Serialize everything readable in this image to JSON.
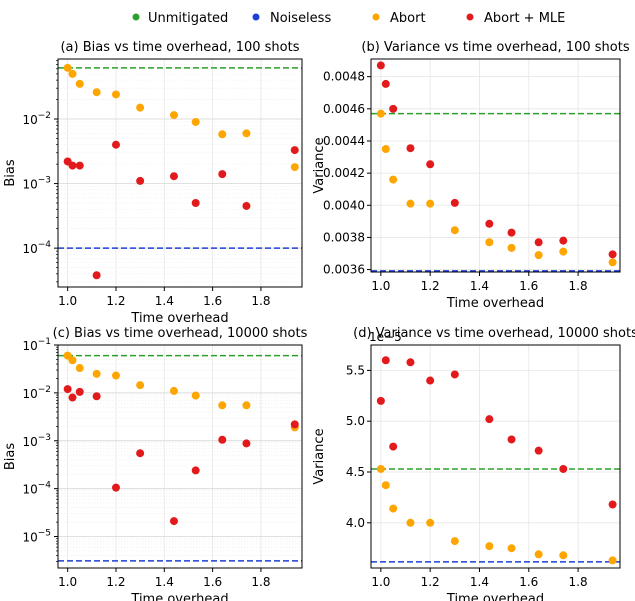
{
  "legend": {
    "placement": "top-center",
    "entries": [
      {
        "label": "Unmitigated",
        "color": "#2ca02c"
      },
      {
        "label": "Noiseless",
        "color": "#1f3fd6"
      },
      {
        "label": "Abort",
        "color": "#ffa500"
      },
      {
        "label": "Abort + MLE",
        "color": "#e31a1c"
      }
    ]
  },
  "chart_data": [
    {
      "type": "scatter",
      "title": "(a) Bias vs time overhead, 100 shots",
      "xlabel": "Time overhead",
      "ylabel": "Bias",
      "xscale": "linear",
      "yscale": "log",
      "xlim": [
        0.96,
        1.97
      ],
      "ylim": [
        2.5e-05,
        0.085
      ],
      "xticks": [
        {
          "v": 1.0,
          "label": "1.0"
        },
        {
          "v": 1.2,
          "label": "1.2"
        },
        {
          "v": 1.4,
          "label": "1.4"
        },
        {
          "v": 1.6,
          "label": "1.6"
        },
        {
          "v": 1.8,
          "label": "1.8"
        }
      ],
      "yticks": [
        {
          "v": 0.0001,
          "base": "10",
          "exp": "−4"
        },
        {
          "v": 0.001,
          "base": "10",
          "exp": "−3"
        },
        {
          "v": 0.01,
          "base": "10",
          "exp": "−2"
        }
      ],
      "offset_text": "",
      "grid": true,
      "hlines": [
        {
          "series": "Unmitigated",
          "y": 0.062,
          "color": "#2ca02c"
        },
        {
          "series": "Noiseless",
          "y": 0.0001,
          "color": "#1f3fd6"
        }
      ],
      "series": [
        {
          "name": "Abort",
          "color": "#ffa500",
          "x": [
            1.0,
            1.02,
            1.05,
            1.12,
            1.2,
            1.3,
            1.44,
            1.53,
            1.64,
            1.74,
            1.94
          ],
          "y": [
            0.062,
            0.05,
            0.035,
            0.026,
            0.024,
            0.015,
            0.0115,
            0.009,
            0.0058,
            0.006,
            0.0018
          ]
        },
        {
          "name": "Abort + MLE",
          "color": "#e31a1c",
          "x": [
            1.0,
            1.02,
            1.05,
            1.12,
            1.2,
            1.3,
            1.44,
            1.53,
            1.64,
            1.74,
            1.94
          ],
          "y": [
            0.0022,
            0.0019,
            0.0019,
            3.8e-05,
            0.004,
            0.0011,
            0.0013,
            0.0005,
            0.0014,
            0.00045,
            0.0033
          ]
        }
      ]
    },
    {
      "type": "scatter",
      "title": "(b) Variance vs time overhead, 100 shots",
      "xlabel": "Time overhead",
      "ylabel": "Variance",
      "xscale": "linear",
      "yscale": "linear",
      "xlim": [
        0.96,
        1.97
      ],
      "ylim": [
        0.003585,
        0.00491
      ],
      "xticks": [
        {
          "v": 1.0,
          "label": "1.0"
        },
        {
          "v": 1.2,
          "label": "1.2"
        },
        {
          "v": 1.4,
          "label": "1.4"
        },
        {
          "v": 1.6,
          "label": "1.6"
        },
        {
          "v": 1.8,
          "label": "1.8"
        }
      ],
      "yticks": [
        {
          "v": 0.0036,
          "label": "0.0036"
        },
        {
          "v": 0.0038,
          "label": "0.0038"
        },
        {
          "v": 0.004,
          "label": "0.0040"
        },
        {
          "v": 0.0042,
          "label": "0.0042"
        },
        {
          "v": 0.0044,
          "label": "0.0044"
        },
        {
          "v": 0.0046,
          "label": "0.0046"
        },
        {
          "v": 0.0048,
          "label": "0.0048"
        }
      ],
      "offset_text": "",
      "grid": true,
      "hlines": [
        {
          "series": "Unmitigated",
          "y": 0.00457,
          "color": "#2ca02c"
        },
        {
          "series": "Noiseless",
          "y": 0.003592,
          "color": "#1f3fd6"
        }
      ],
      "series": [
        {
          "name": "Abort",
          "color": "#ffa500",
          "x": [
            1.0,
            1.02,
            1.05,
            1.12,
            1.2,
            1.3,
            1.44,
            1.53,
            1.64,
            1.74,
            1.94
          ],
          "y": [
            0.00457,
            0.00435,
            0.00416,
            0.00401,
            0.00401,
            0.003845,
            0.00377,
            0.003735,
            0.00369,
            0.003712,
            0.003645
          ]
        },
        {
          "name": "Abort + MLE",
          "color": "#e31a1c",
          "x": [
            1.0,
            1.02,
            1.05,
            1.12,
            1.2,
            1.3,
            1.44,
            1.53,
            1.64,
            1.74,
            1.94
          ],
          "y": [
            0.00487,
            0.004755,
            0.0046,
            0.004355,
            0.004255,
            0.004015,
            0.003885,
            0.00383,
            0.00377,
            0.00378,
            0.003695
          ]
        }
      ]
    },
    {
      "type": "scatter",
      "title": "(c) Bias vs time overhead, 10000 shots",
      "xlabel": "Time overhead",
      "ylabel": "Bias",
      "xscale": "linear",
      "yscale": "log",
      "xlim": [
        0.96,
        1.97
      ],
      "ylim": [
        2.2e-06,
        0.1
      ],
      "xticks": [
        {
          "v": 1.0,
          "label": "1.0"
        },
        {
          "v": 1.2,
          "label": "1.2"
        },
        {
          "v": 1.4,
          "label": "1.4"
        },
        {
          "v": 1.6,
          "label": "1.6"
        },
        {
          "v": 1.8,
          "label": "1.8"
        }
      ],
      "yticks": [
        {
          "v": 1e-05,
          "base": "10",
          "exp": "−5"
        },
        {
          "v": 0.0001,
          "base": "10",
          "exp": "−4"
        },
        {
          "v": 0.001,
          "base": "10",
          "exp": "−3"
        },
        {
          "v": 0.01,
          "base": "10",
          "exp": "−2"
        },
        {
          "v": 0.1,
          "base": "10",
          "exp": "−1"
        }
      ],
      "offset_text": "",
      "grid": true,
      "hlines": [
        {
          "series": "Unmitigated",
          "y": 0.06,
          "color": "#2ca02c"
        },
        {
          "series": "Noiseless",
          "y": 3.1e-06,
          "color": "#1f3fd6"
        }
      ],
      "series": [
        {
          "name": "Abort",
          "color": "#ffa500",
          "x": [
            1.0,
            1.02,
            1.05,
            1.12,
            1.2,
            1.3,
            1.44,
            1.53,
            1.64,
            1.74,
            1.94
          ],
          "y": [
            0.06,
            0.048,
            0.033,
            0.025,
            0.023,
            0.0145,
            0.011,
            0.0088,
            0.0055,
            0.0055,
            0.0019
          ]
        },
        {
          "name": "Abort + MLE",
          "color": "#e31a1c",
          "x": [
            1.0,
            1.02,
            1.05,
            1.12,
            1.2,
            1.3,
            1.44,
            1.53,
            1.64,
            1.74,
            1.94
          ],
          "y": [
            0.012,
            0.008,
            0.0105,
            0.0085,
            0.000105,
            0.00055,
            2.1e-05,
            0.00024,
            0.00105,
            0.00088,
            0.0022
          ]
        }
      ]
    },
    {
      "type": "scatter",
      "title": "(d) Variance vs time overhead, 10000 shots",
      "xlabel": "Time overhead",
      "ylabel": "Variance",
      "xscale": "linear",
      "yscale": "linear",
      "xlim": [
        0.96,
        1.97
      ],
      "ylim": [
        3.555,
        5.75
      ],
      "xticks": [
        {
          "v": 1.0,
          "label": "1.0"
        },
        {
          "v": 1.2,
          "label": "1.2"
        },
        {
          "v": 1.4,
          "label": "1.4"
        },
        {
          "v": 1.6,
          "label": "1.6"
        },
        {
          "v": 1.8,
          "label": "1.8"
        }
      ],
      "yticks": [
        {
          "v": 4.0,
          "label": "4.0"
        },
        {
          "v": 4.5,
          "label": "4.5"
        },
        {
          "v": 5.0,
          "label": "5.0"
        },
        {
          "v": 5.5,
          "label": "5.5"
        }
      ],
      "offset_text": "1e−5",
      "grid": true,
      "hlines": [
        {
          "series": "Unmitigated",
          "y": 4.53,
          "color": "#2ca02c"
        },
        {
          "series": "Noiseless",
          "y": 3.615,
          "color": "#1f3fd6"
        }
      ],
      "series": [
        {
          "name": "Abort",
          "color": "#ffa500",
          "x": [
            1.0,
            1.02,
            1.05,
            1.12,
            1.2,
            1.3,
            1.44,
            1.53,
            1.64,
            1.74,
            1.94
          ],
          "y": [
            4.53,
            4.37,
            4.14,
            4.0,
            4.0,
            3.82,
            3.77,
            3.75,
            3.69,
            3.68,
            3.63
          ]
        },
        {
          "name": "Abort + MLE",
          "color": "#e31a1c",
          "x": [
            1.0,
            1.02,
            1.05,
            1.12,
            1.2,
            1.3,
            1.44,
            1.53,
            1.64,
            1.74,
            1.94
          ],
          "y": [
            5.2,
            5.6,
            4.75,
            5.58,
            5.4,
            5.46,
            5.02,
            4.82,
            4.71,
            4.53,
            4.18
          ]
        }
      ]
    }
  ]
}
